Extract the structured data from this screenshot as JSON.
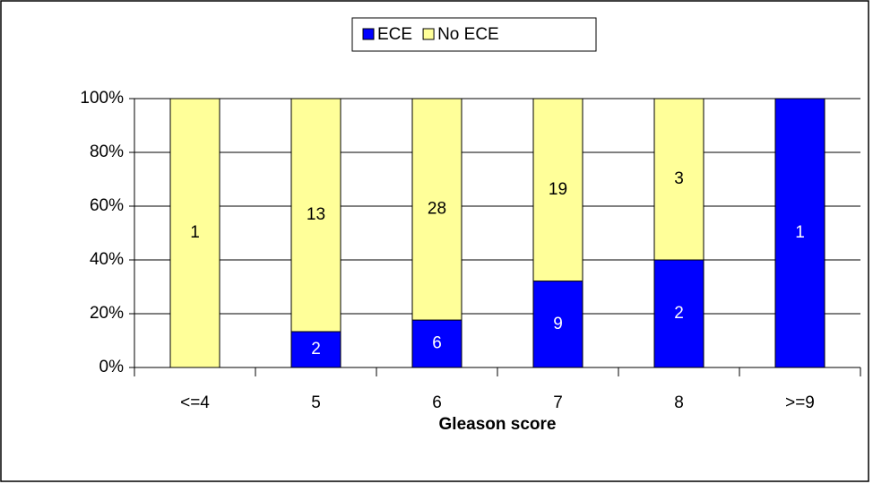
{
  "chart_data": {
    "type": "stacked_percent_bar",
    "x_label": "Gleason score",
    "categories": [
      "<=4",
      "5",
      "6",
      "7",
      "8",
      ">=9"
    ],
    "series": [
      {
        "name": "ECE",
        "color": "#0000ff",
        "label_color": "#ffffff",
        "values": [
          0,
          2,
          6,
          9,
          2,
          1
        ]
      },
      {
        "name": "No ECE",
        "color": "#ffff99",
        "label_color": "#000000",
        "values": [
          1,
          13,
          28,
          19,
          3,
          0
        ]
      }
    ],
    "ylim": [
      0,
      100
    ],
    "yticks": [
      {
        "value": 0,
        "label": "0%"
      },
      {
        "value": 20,
        "label": "20%"
      },
      {
        "value": 40,
        "label": "40%"
      },
      {
        "value": 60,
        "label": "60%"
      },
      {
        "value": 80,
        "label": "80%"
      },
      {
        "value": 100,
        "label": "100%"
      }
    ],
    "grid": true,
    "legend": "top"
  }
}
